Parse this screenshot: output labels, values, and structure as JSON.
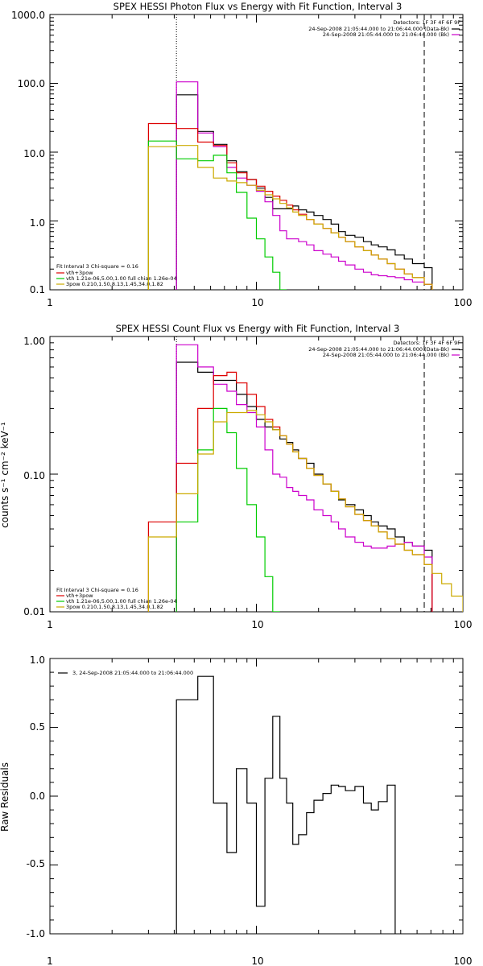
{
  "chart_data": [
    {
      "type": "line",
      "title": "SPEX HESSI Photon Flux vs Energy with Fit Function, Interval 3",
      "xscale": "log",
      "yscale": "log",
      "xlim": [
        1,
        100
      ],
      "ylim": [
        0.1,
        1000
      ],
      "x_ticks": [
        "1",
        "10",
        "100"
      ],
      "y_ticks": [
        "0.1",
        "1.0",
        "10.0",
        "100.0",
        "1000.0"
      ],
      "detectors_label": "Detectors: 1F 3F 4F 6F 9F",
      "legend_topright": [
        {
          "text": "24-Sep-2008 21:05:44.000 to 21:06:44.000 (Data-Bk)",
          "color": "#000000"
        },
        {
          "text": "24-Sep-2008 21:05:44.000 to 21:06:44.000 (Bk)",
          "color": "#cc00cc"
        }
      ],
      "legend_bottomleft": [
        {
          "text": "Fit Interval 3   Chi-square = 0.16",
          "color": null
        },
        {
          "text": "vth+3pow",
          "color": "#dd0000"
        },
        {
          "text": "vth 1.21e-06,5.00,1.00   full chian 1.26e-04",
          "color": "#00cc00"
        },
        {
          "text": "3pow 0.210,1.50,8.13,1.45,34.0,1.82",
          "color": "#ccaa00"
        }
      ],
      "vlines": [
        {
          "x": 4.1,
          "style": "dotted"
        },
        {
          "x": 65,
          "style": "dashed"
        }
      ],
      "bin_edges": [
        3.0,
        4.1,
        5.2,
        6.2,
        7.2,
        8.0,
        9.0,
        10.0,
        11.0,
        12.0,
        13.0,
        14.0,
        15.0,
        16.0,
        17.5,
        19.0,
        21.0,
        23.0,
        25.0,
        27.0,
        30.0,
        33.0,
        36.0,
        39.0,
        43.0,
        47.0,
        52.0,
        57.0,
        65.0,
        71.0,
        79.0,
        88.0,
        100.0
      ],
      "series": [
        {
          "name": "Data-Bk",
          "color": "#000000",
          "start_bin": 1,
          "values": [
            68,
            20,
            13,
            7.5,
            5.2,
            4.0,
            3.0,
            2.2,
            1.5,
            1.5,
            1.5,
            1.65,
            1.45,
            1.35,
            1.2,
            1.05,
            0.9,
            0.7,
            0.62,
            0.58,
            0.5,
            0.45,
            0.42,
            0.38,
            0.32,
            0.28,
            0.24,
            0.21
          ]
        },
        {
          "name": "Bk",
          "color": "#cc00cc",
          "start_bin": 1,
          "values": [
            105,
            19,
            12,
            6.0,
            4.2,
            3.3,
            2.7,
            1.9,
            1.2,
            0.72,
            0.55,
            0.55,
            0.5,
            0.45,
            0.37,
            0.33,
            0.3,
            0.26,
            0.23,
            0.2,
            0.18,
            0.165,
            0.16,
            0.155,
            0.15,
            0.14,
            0.13,
            0.12
          ]
        },
        {
          "name": "vth+3pow",
          "color": "#dd0000",
          "start_bin": 0,
          "values": [
            26,
            22,
            14,
            12.5,
            7.0,
            5.0,
            4.0,
            3.2,
            2.7,
            2.3,
            2.0,
            1.7,
            1.45,
            1.25,
            1.05,
            0.9,
            0.78,
            0.67,
            0.58,
            0.5,
            0.42,
            0.37,
            0.32,
            0.28,
            0.24,
            0.2,
            0.17,
            0.15,
            0.12
          ]
        },
        {
          "name": "vth",
          "color": "#00cc00",
          "start_bin": 0,
          "values": [
            14.5,
            8.0,
            7.5,
            9.0,
            5.0,
            2.6,
            1.1,
            0.55,
            0.3,
            0.18,
            0.1
          ]
        },
        {
          "name": "3pow",
          "color": "#ccaa00",
          "start_bin": 0,
          "values": [
            12,
            12.5,
            6.0,
            4.2,
            3.8,
            3.6,
            3.3,
            2.8,
            2.4,
            2.1,
            1.8,
            1.55,
            1.35,
            1.2,
            1.05,
            0.9,
            0.78,
            0.67,
            0.58,
            0.5,
            0.42,
            0.37,
            0.32,
            0.28,
            0.24,
            0.2,
            0.17,
            0.15,
            0.12
          ]
        }
      ]
    },
    {
      "type": "line",
      "title": "SPEX HESSI Count Flux vs Energy with Fit Function, Interval 3",
      "ylabel": "counts s⁻¹ cm⁻² keV⁻¹",
      "xscale": "log",
      "yscale": "log",
      "xlim": [
        1,
        100
      ],
      "ylim": [
        0.01,
        1.0
      ],
      "x_ticks": [
        "1",
        "10",
        "100"
      ],
      "y_ticks": [
        "0.01",
        "0.10",
        "1.00"
      ],
      "detectors_label": "Detectors: 1F 3F 4F 6F 9F",
      "legend_topright": [
        {
          "text": "24-Sep-2008 21:05:44.000 to 21:06:44.000 (Data-Bk)",
          "color": "#000000"
        },
        {
          "text": "24-Sep-2008 21:05:44.000 to 21:06:44.000 (Bk)",
          "color": "#cc00cc"
        }
      ],
      "legend_bottomleft": [
        {
          "text": "Fit Interval 3   Chi-square = 0.16",
          "color": null
        },
        {
          "text": "vth+3pow",
          "color": "#dd0000"
        },
        {
          "text": "vth 1.21e-06,5.00,1.00   full chian 1.26e-04",
          "color": "#00cc00"
        },
        {
          "text": "3pow 0.210,1.50,8.13,1.45,34.0,1.82",
          "color": "#ccaa00"
        }
      ],
      "vlines": [
        {
          "x": 4.1,
          "style": "dotted"
        },
        {
          "x": 65,
          "style": "dashed"
        }
      ],
      "bin_edges": [
        3.0,
        4.1,
        5.2,
        6.2,
        7.2,
        8.0,
        9.0,
        10.0,
        11.0,
        12.0,
        13.0,
        14.0,
        15.0,
        16.0,
        17.5,
        19.0,
        21.0,
        23.0,
        25.0,
        27.0,
        30.0,
        33.0,
        36.0,
        39.0,
        43.0,
        47.0,
        52.0,
        57.0,
        65.0,
        71.0,
        79.0,
        88.0,
        100.0
      ],
      "series": [
        {
          "name": "Data-Bk",
          "color": "#000000",
          "start_bin": 1,
          "values": [
            0.65,
            0.55,
            0.48,
            0.48,
            0.38,
            0.31,
            0.25,
            0.22,
            0.21,
            0.18,
            0.17,
            0.15,
            0.13,
            0.12,
            0.1,
            0.085,
            0.075,
            0.065,
            0.06,
            0.055,
            0.05,
            0.045,
            0.042,
            0.04,
            0.035,
            0.032,
            0.03,
            0.028
          ]
        },
        {
          "name": "Bk",
          "color": "#cc00cc",
          "start_bin": 1,
          "values": [
            0.87,
            0.6,
            0.45,
            0.4,
            0.32,
            0.28,
            0.22,
            0.15,
            0.1,
            0.095,
            0.08,
            0.075,
            0.07,
            0.065,
            0.055,
            0.05,
            0.045,
            0.04,
            0.035,
            0.032,
            0.03,
            0.029,
            0.029,
            0.03,
            0.031,
            0.032,
            0.03,
            0.025
          ]
        },
        {
          "name": "vth+3pow",
          "color": "#dd0000",
          "start_bin": 0,
          "values": [
            0.045,
            0.12,
            0.3,
            0.52,
            0.55,
            0.46,
            0.38,
            0.31,
            0.25,
            0.22,
            0.19,
            0.165,
            0.145,
            0.13,
            0.11,
            0.098,
            0.085,
            0.075,
            0.066,
            0.058,
            0.051,
            0.046,
            0.042,
            0.038,
            0.034,
            0.031,
            0.028,
            0.026,
            0.022
          ]
        },
        {
          "name": "vth",
          "color": "#00cc00",
          "start_bin": 1,
          "values": [
            0.045,
            0.15,
            0.3,
            0.2,
            0.11,
            0.06,
            0.035,
            0.018,
            0.01
          ]
        },
        {
          "name": "3pow",
          "color": "#ccaa00",
          "start_bin": 0,
          "values": [
            0.035,
            0.072,
            0.14,
            0.24,
            0.28,
            0.28,
            0.29,
            0.27,
            0.24,
            0.21,
            0.19,
            0.165,
            0.145,
            0.13,
            0.11,
            0.098,
            0.085,
            0.075,
            0.066,
            0.058,
            0.051,
            0.046,
            0.042,
            0.038,
            0.034,
            0.031,
            0.028,
            0.026,
            0.022,
            0.019,
            0.016,
            0.013
          ]
        }
      ]
    },
    {
      "type": "line",
      "ylabel": "Raw Residuals",
      "xscale": "log",
      "yscale": "linear",
      "xlim": [
        1,
        100
      ],
      "ylim": [
        -1.0,
        1.0
      ],
      "x_ticks": [
        "1",
        "10",
        "100"
      ],
      "y_ticks": [
        "-1.0",
        "-0.5",
        "0.0",
        "0.5",
        "1.0"
      ],
      "legend": {
        "text": "3, 24-Sep-2008 21:05:44.000 to 21:06:44.000",
        "color": "#000000"
      },
      "bin_edges": [
        3.0,
        4.1,
        5.2,
        6.2,
        7.2,
        8.0,
        9.0,
        10.0,
        11.0,
        12.0,
        13.0,
        14.0,
        15.0,
        16.0,
        17.5,
        19.0,
        21.0,
        23.0,
        25.0,
        27.0,
        30.0,
        33.0,
        36.0,
        39.0,
        43.0,
        47.0,
        52.0,
        57.0,
        65.0,
        71.0,
        79.0,
        88.0,
        100.0
      ],
      "series": [
        {
          "name": "residuals",
          "color": "#000000",
          "start_bin": 1,
          "values": [
            0.7,
            0.87,
            -0.05,
            -0.41,
            0.2,
            -0.05,
            -0.8,
            0.13,
            0.58,
            0.13,
            -0.05,
            -0.35,
            -0.28,
            -0.12,
            -0.03,
            0.02,
            0.08,
            0.07,
            0.04,
            0.07,
            -0.05,
            -0.1,
            -0.04,
            0.08
          ]
        }
      ]
    }
  ]
}
